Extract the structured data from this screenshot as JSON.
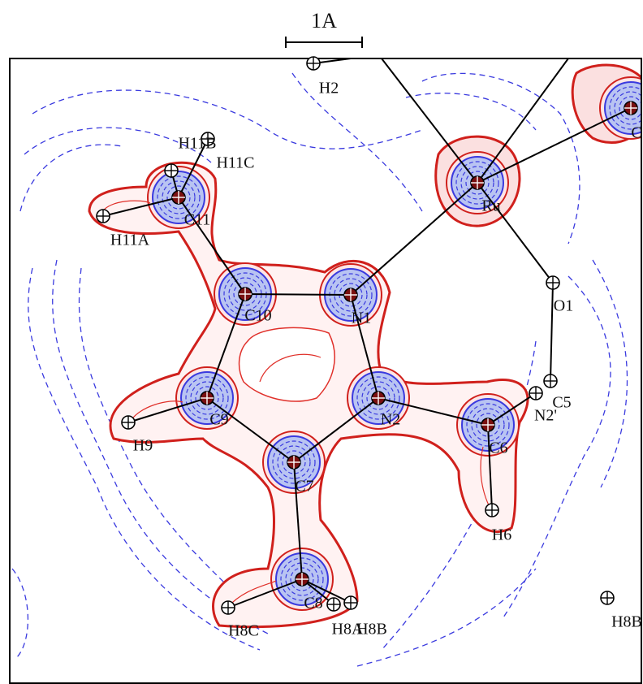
{
  "scale_bar": "1A",
  "atoms": [
    "H2",
    "H11B",
    "H11C",
    "C11",
    "H11A",
    "Ru",
    "C",
    "C10",
    "N1",
    "O1",
    "C5",
    "N2'",
    "C9",
    "N2",
    "C6",
    "H9",
    "C7",
    "H6",
    "C8",
    "H8C",
    "H8A",
    "H8B",
    "H8B"
  ]
}
